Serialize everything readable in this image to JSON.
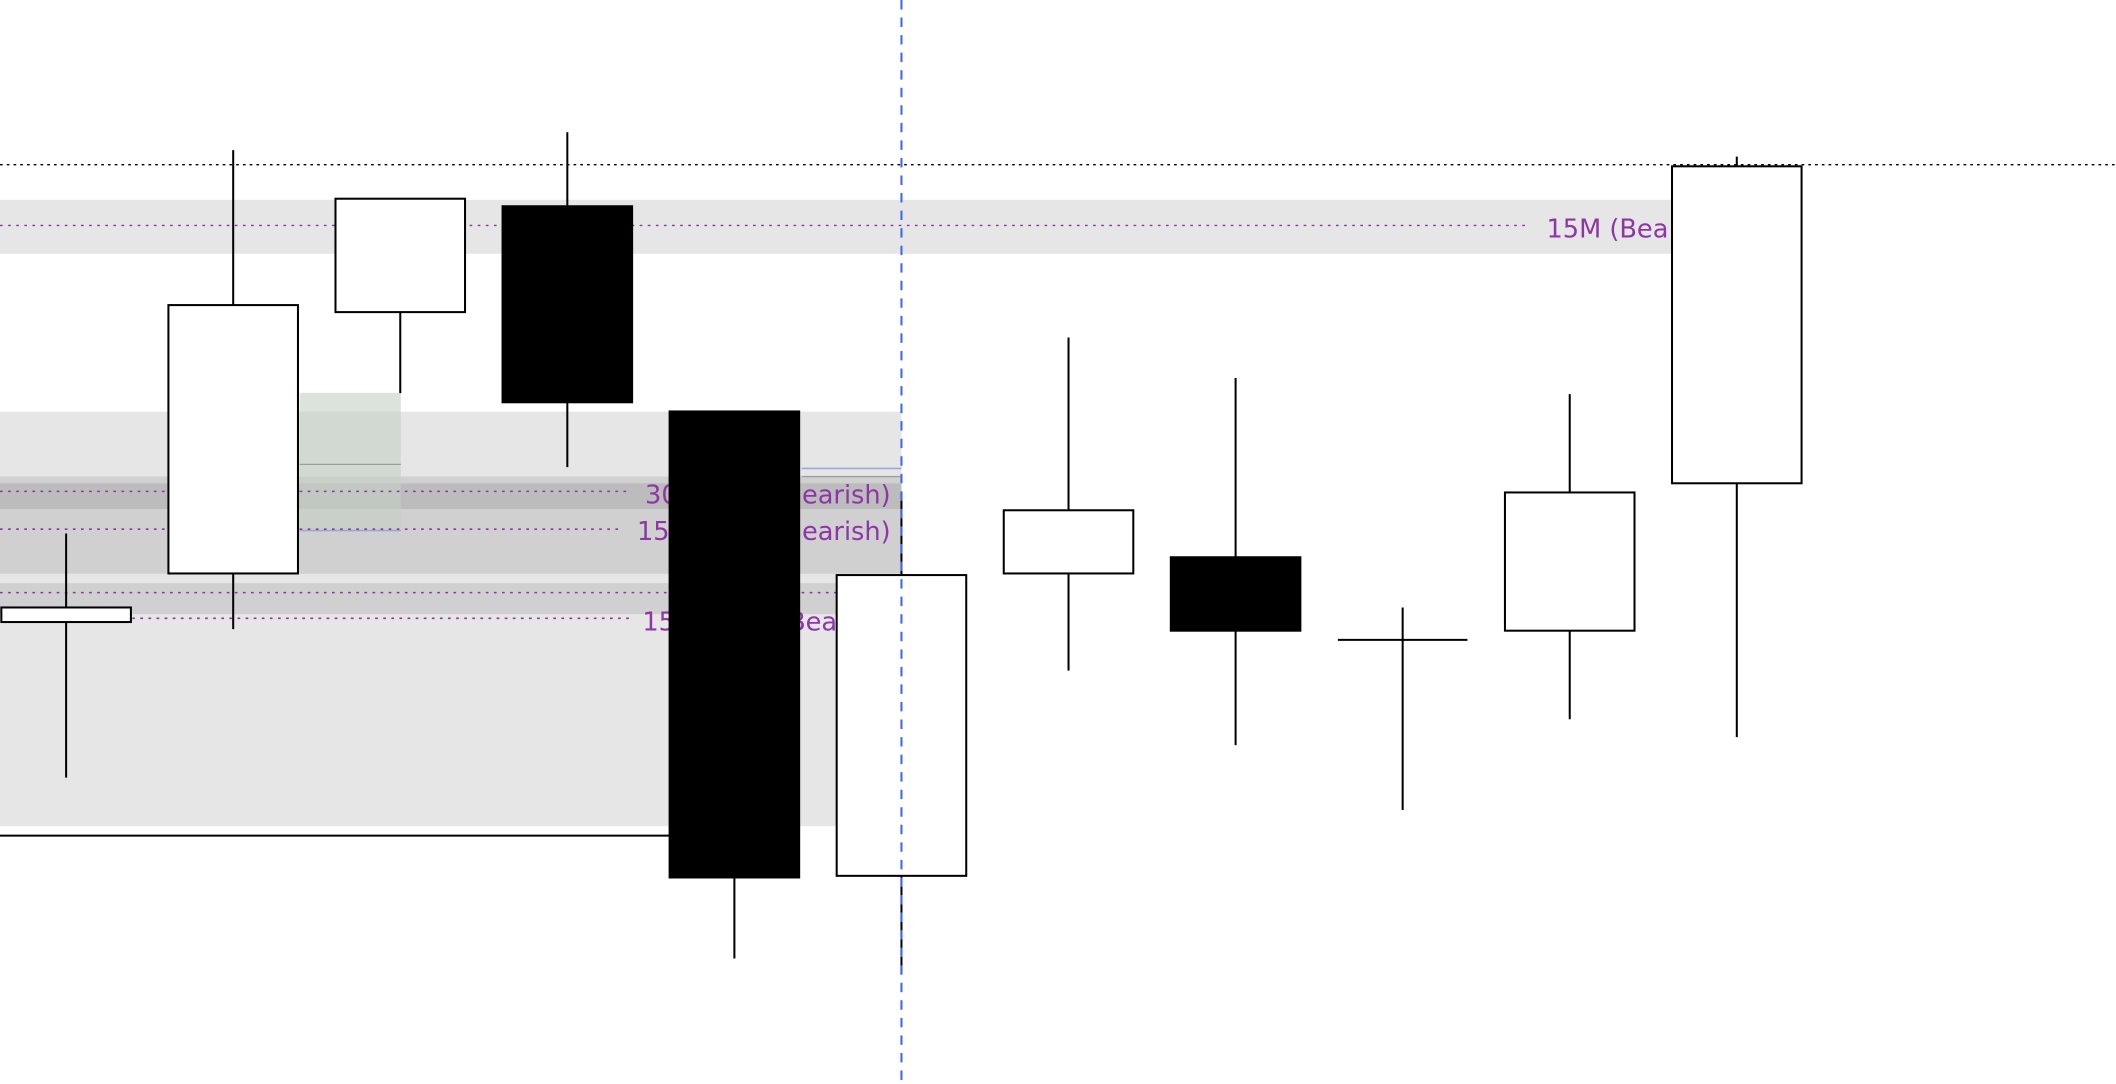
{
  "chart_data": {
    "type": "candlestick",
    "title": "",
    "xlabel": "",
    "ylabel": "",
    "ylim": [
      0,
      100
    ],
    "grid": false,
    "colors": {
      "bullish_body": "#ffffff",
      "bearish_body": "#000000",
      "zone_label": "#8e35a8",
      "cursor_line": "#3a66f0",
      "zone_fill": "#e6e6e6"
    },
    "candles": [
      {
        "open": 42.4,
        "high": 50.6,
        "low": 28.0,
        "close": 43.75
      },
      {
        "open": 46.9,
        "high": 86.1,
        "low": 41.75,
        "close": 71.75
      },
      {
        "open": 71.1,
        "high": 81.6,
        "low": 63.6,
        "close": 81.6
      },
      {
        "open": 80.9,
        "high": 87.75,
        "low": 56.75,
        "close": 62.75
      },
      {
        "open": 61.9,
        "high": 61.9,
        "low": 11.25,
        "close": 18.75
      },
      {
        "open": 18.9,
        "high": 54.4,
        "low": 9.75,
        "close": 46.75
      },
      {
        "open": 46.9,
        "high": 68.75,
        "low": 37.9,
        "close": 52.75
      },
      {
        "open": 48.4,
        "high": 65.0,
        "low": 31.0,
        "close": 41.6
      },
      {
        "open": 40.75,
        "high": 43.75,
        "low": 25.0,
        "close": 40.75
      },
      {
        "open": 41.6,
        "high": 63.5,
        "low": 33.4,
        "close": 54.4
      },
      {
        "open": 55.25,
        "high": 85.5,
        "low": 31.75,
        "close": 84.6
      }
    ],
    "levels": [
      {
        "price": 84.75,
        "style": "dotted-black"
      },
      {
        "price": 79.1,
        "style": "dotted-purple"
      },
      {
        "price": 54.5,
        "style": "dotted-purple"
      },
      {
        "price": 51.0,
        "style": "dotted-purple"
      },
      {
        "price": 45.1,
        "style": "dotted-purple"
      },
      {
        "price": 42.75,
        "style": "dotted-purple"
      }
    ],
    "zone_labels": {
      "top": "15M (Bea",
      "z30_a": "30",
      "z30_b": "Bearish)",
      "z15_a": "15",
      "z15_b": "Bearish)",
      "z15c_a": "15",
      "z15c_b": "Bea"
    }
  }
}
